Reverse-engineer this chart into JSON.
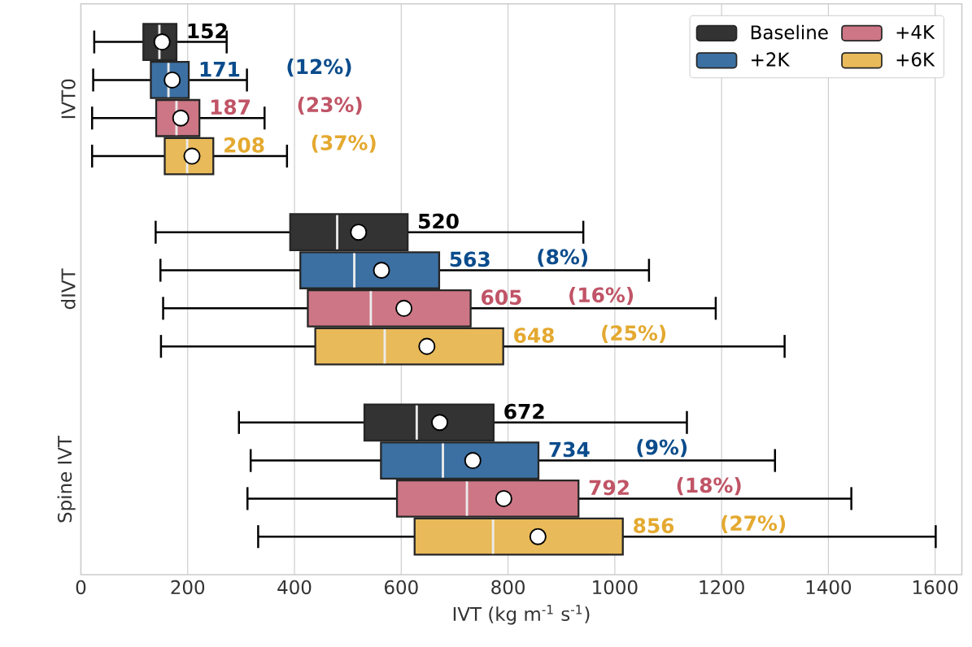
{
  "chart_data": {
    "type": "box",
    "orientation": "horizontal",
    "xlabel": "IVT (kg m$^{-1}$ s$^{-1}$)",
    "categories": [
      "IVT0",
      "dIVT",
      "Spine IVT"
    ],
    "xlim": [
      0,
      1650
    ],
    "xticks": [
      0,
      200,
      400,
      600,
      800,
      1000,
      1200,
      1400,
      1600
    ],
    "grid": "x",
    "legend": "top right",
    "marker": "circle",
    "series": [
      {
        "name": "Baseline",
        "color": "#333333",
        "value_labels": [
          "152",
          "520",
          "672"
        ],
        "boxes": [
          {
            "low": 25,
            "q1": 117,
            "median": 147,
            "q3": 179,
            "high": 273,
            "mean": 152
          },
          {
            "low": 140,
            "q1": 392,
            "median": 480,
            "q3": 612,
            "high": 941,
            "mean": 520
          },
          {
            "low": 296,
            "q1": 531,
            "median": 629,
            "q3": 773,
            "high": 1135,
            "mean": 672
          }
        ]
      },
      {
        "name": "+2K",
        "color": "#3c70a3",
        "value_labels": [
          "171",
          "563",
          "734"
        ],
        "boxes": [
          {
            "low": 23,
            "q1": 131,
            "median": 164,
            "q3": 202,
            "high": 311,
            "mean": 171
          },
          {
            "low": 149,
            "q1": 411,
            "median": 512,
            "q3": 671,
            "high": 1064,
            "mean": 563
          },
          {
            "low": 318,
            "q1": 562,
            "median": 678,
            "q3": 857,
            "high": 1300,
            "mean": 734
          }
        ]
      },
      {
        "name": "+4K",
        "color": "#cd7685",
        "value_labels": [
          "187",
          "605",
          "792"
        ],
        "boxes": [
          {
            "low": 21,
            "q1": 141,
            "median": 179,
            "q3": 222,
            "high": 344,
            "mean": 187
          },
          {
            "low": 154,
            "q1": 425,
            "median": 543,
            "q3": 730,
            "high": 1189,
            "mean": 605
          },
          {
            "low": 312,
            "q1": 592,
            "median": 723,
            "q3": 932,
            "high": 1443,
            "mean": 792
          }
        ]
      },
      {
        "name": "+6K",
        "color": "#e9ba59",
        "value_labels": [
          "208",
          "648",
          "856"
        ],
        "boxes": [
          {
            "low": 21,
            "q1": 157,
            "median": 199,
            "q3": 248,
            "high": 386,
            "mean": 208
          },
          {
            "low": 150,
            "q1": 439,
            "median": 569,
            "q3": 791,
            "high": 1318,
            "mean": 648
          },
          {
            "low": 332,
            "q1": 625,
            "median": 772,
            "q3": 1015,
            "high": 1601,
            "mean": 856
          }
        ]
      }
    ],
    "annotations": [
      "(12%)",
      "(23%)",
      "(37%)",
      "(8%)",
      "(16%)",
      "(25%)",
      "(9%)",
      "(18%)",
      "(27%)"
    ]
  }
}
